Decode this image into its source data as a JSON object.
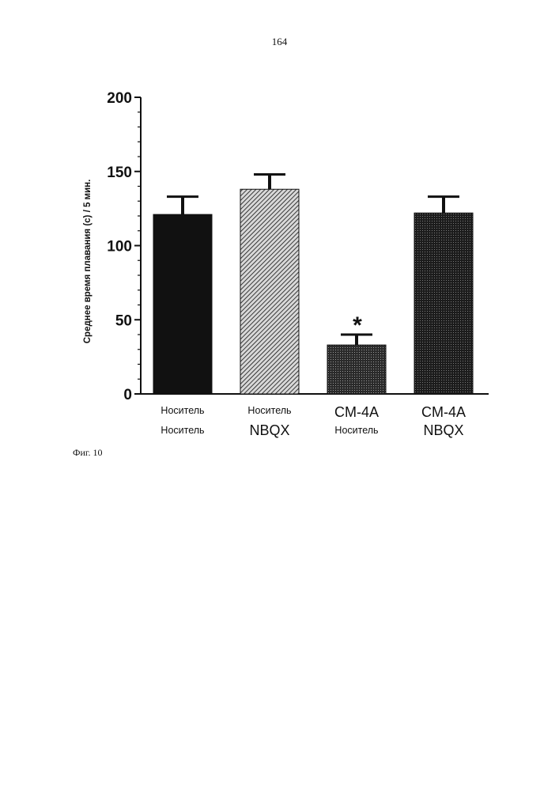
{
  "page": {
    "number": "164",
    "caption": "Фиг. 10"
  },
  "chart_data": {
    "type": "bar",
    "title": "",
    "xlabel": "",
    "ylabel": "Среднее время плавания (с) / 5 мин.",
    "ylim": [
      0,
      200
    ],
    "yticks": [
      0,
      50,
      100,
      150,
      200
    ],
    "grid": false,
    "categories": [
      {
        "line1": "Носитель",
        "line2": "Носитель"
      },
      {
        "line1": "Носитель",
        "line2": "NBQX"
      },
      {
        "line1": "CM-4A",
        "line2": "Носитель"
      },
      {
        "line1": "CM-4A",
        "line2": "NBQX"
      }
    ],
    "values": [
      121,
      138,
      33,
      122
    ],
    "errors": [
      12,
      10,
      7,
      11
    ],
    "annotations": [
      "",
      "",
      "*",
      ""
    ],
    "fills": [
      "solid",
      "hatch-diagonal",
      "dense-dots",
      "fine-grid"
    ],
    "bar_color": "#111111"
  }
}
